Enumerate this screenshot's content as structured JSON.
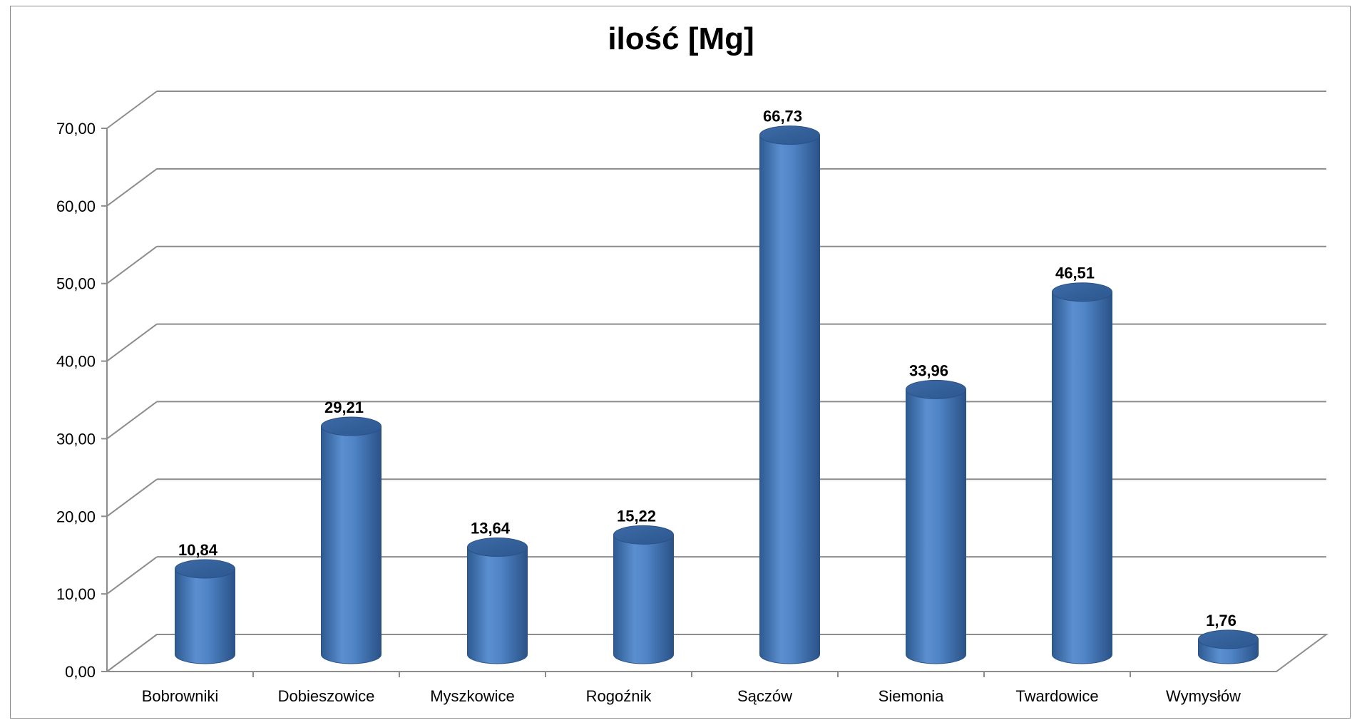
{
  "chart_data": {
    "type": "bar",
    "title": "ilość [Mg]",
    "categories": [
      "Bobrowniki",
      "Dobieszowice",
      "Myszkowice",
      "Rogoźnik",
      "Sączów",
      "Siemonia",
      "Twardowice",
      "Wymysłów"
    ],
    "values": [
      10.84,
      29.21,
      13.64,
      15.22,
      66.73,
      33.96,
      46.51,
      1.76
    ],
    "data_labels": [
      "10,84",
      "29,21",
      "13,64",
      "15,22",
      "66,73",
      "33,96",
      "46,51",
      "1,76"
    ],
    "y_tick_labels": [
      "0,00",
      "10,00",
      "20,00",
      "30,00",
      "40,00",
      "50,00",
      "60,00",
      "70,00"
    ],
    "ylim": [
      0,
      70
    ],
    "grid": true,
    "bar_color": "#4a7ebb",
    "style": "3d-cylinder"
  }
}
